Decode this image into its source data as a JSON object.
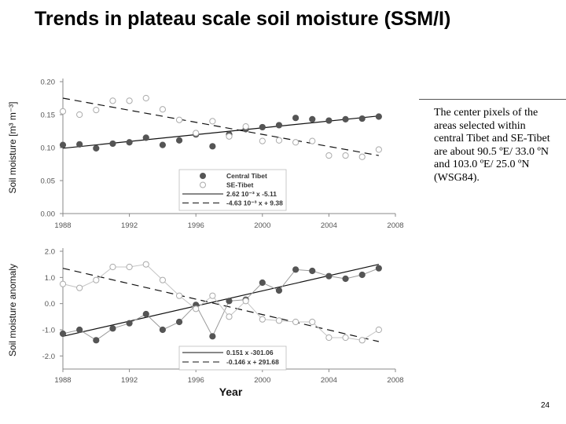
{
  "slide": {
    "title": "Trends in plateau scale soil moisture (SSM/I)",
    "note": "The center pixels of the areas selected within central Tibet and SE-Tibet are about 90.5 ºE/ 33.0 ºN and 103.0 ºE/ 25.0 ºN (WSG84).",
    "page_number": "24"
  },
  "chart_data": [
    {
      "type": "scatter",
      "title": "",
      "xlabel": "",
      "ylabel": "Soil moisture [m³ m⁻³]",
      "xlim": [
        1988,
        2008
      ],
      "ylim": [
        0.0,
        0.2
      ],
      "x_ticks": [
        "1988",
        "1992",
        "1996",
        "2000",
        "2004",
        "2008"
      ],
      "y_ticks": [
        "0.00",
        "0.05",
        "0.10",
        "0.15",
        "0.20"
      ],
      "grid": false,
      "legend_position": "lower-center",
      "series": [
        {
          "name": "Central Tibet",
          "marker": "filled-circle",
          "color": "#555555",
          "x": [
            1988,
            1989,
            1990,
            1991,
            1992,
            1993,
            1994,
            1995,
            1996,
            1997,
            1998,
            1999,
            2000,
            2001,
            2002,
            2003,
            2004,
            2005,
            2006,
            2007
          ],
          "y": [
            0.104,
            0.105,
            0.099,
            0.106,
            0.108,
            0.115,
            0.104,
            0.111,
            0.12,
            0.102,
            0.12,
            0.128,
            0.131,
            0.134,
            0.145,
            0.143,
            0.141,
            0.143,
            0.144,
            0.147
          ]
        },
        {
          "name": "SE-Tibet",
          "marker": "open-circle",
          "color": "#9a9a9a",
          "x": [
            1988,
            1989,
            1990,
            1991,
            1992,
            1993,
            1994,
            1995,
            1996,
            1997,
            1998,
            1999,
            2000,
            2001,
            2002,
            2003,
            2004,
            2005,
            2006,
            2007
          ],
          "y": [
            0.155,
            0.15,
            0.157,
            0.171,
            0.171,
            0.175,
            0.158,
            0.142,
            0.122,
            0.14,
            0.117,
            0.132,
            0.11,
            0.111,
            0.108,
            0.11,
            0.088,
            0.088,
            0.086,
            0.097
          ]
        }
      ],
      "trend_lines": [
        {
          "label": "2.62 10⁻³ x -5.11",
          "style": "solid",
          "x": [
            1988,
            2007
          ],
          "y": [
            0.099,
            0.148
          ]
        },
        {
          "label": "-4.63 10⁻³ x + 9.38",
          "style": "dashed",
          "x": [
            1988,
            2007
          ],
          "y": [
            0.175,
            0.088
          ]
        }
      ]
    },
    {
      "type": "line",
      "title": "",
      "xlabel": "Year",
      "ylabel": "Soil moisture anomaly",
      "xlim": [
        1988,
        2008
      ],
      "ylim": [
        -2.5,
        2.0
      ],
      "x_ticks": [
        "1988",
        "1992",
        "1996",
        "2000",
        "2004",
        "2008"
      ],
      "y_ticks": [
        "2.0",
        "1.0",
        "0.0",
        "-1.0",
        "-2.0"
      ],
      "grid": false,
      "legend_position": "bottom-center",
      "series": [
        {
          "name": "Central Tibet",
          "marker": "filled-circle",
          "color": "#555555",
          "x": [
            1988,
            1989,
            1990,
            1991,
            1992,
            1993,
            1994,
            1995,
            1996,
            1997,
            1998,
            1999,
            2000,
            2001,
            2002,
            2003,
            2004,
            2005,
            2006,
            2007
          ],
          "y": [
            -1.15,
            -1.0,
            -1.4,
            -0.95,
            -0.75,
            -0.4,
            -1.0,
            -0.7,
            -0.05,
            -1.25,
            0.1,
            0.15,
            0.8,
            0.5,
            1.3,
            1.25,
            1.05,
            0.95,
            1.1,
            1.35
          ]
        },
        {
          "name": "SE-Tibet",
          "marker": "open-circle",
          "color": "#9a9a9a",
          "x": [
            1988,
            1989,
            1990,
            1991,
            1992,
            1993,
            1994,
            1995,
            1996,
            1997,
            1998,
            1999,
            2000,
            2001,
            2002,
            2003,
            2004,
            2005,
            2006,
            2007
          ],
          "y": [
            0.75,
            0.6,
            0.9,
            1.4,
            1.4,
            1.5,
            0.9,
            0.3,
            -0.2,
            0.3,
            -0.5,
            0.1,
            -0.6,
            -0.65,
            -0.7,
            -0.7,
            -1.3,
            -1.3,
            -1.4,
            -1.0
          ]
        }
      ],
      "trend_lines": [
        {
          "label": "0.151 x -301.06",
          "style": "solid",
          "x": [
            1988,
            2007
          ],
          "y": [
            -1.25,
            1.5
          ]
        },
        {
          "label": "-0.146 x + 291.68",
          "style": "dashed",
          "x": [
            1988,
            2007
          ],
          "y": [
            1.35,
            -1.45
          ]
        }
      ]
    }
  ]
}
